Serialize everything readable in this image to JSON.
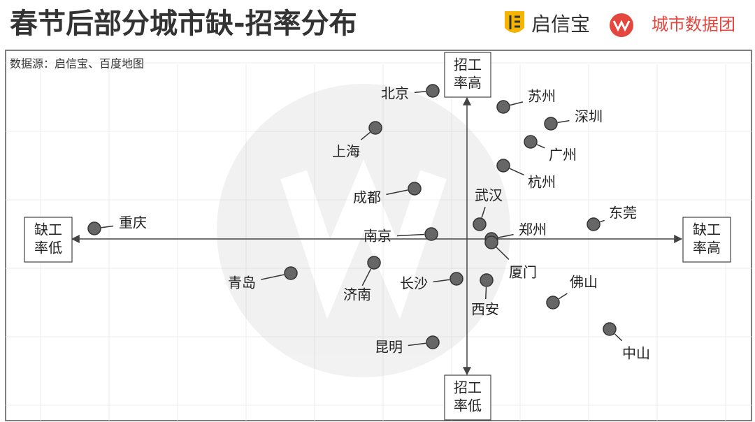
{
  "chart_data": {
    "type": "scatter",
    "title": "春节后部分城市缺-招率分布",
    "brands": [
      "启信宝",
      "城市数据团"
    ],
    "source": "数据源：启信宝、百度地图",
    "x_axis_labels": {
      "low": [
        "缺工",
        "率低"
      ],
      "high": [
        "缺工",
        "率高"
      ]
    },
    "y_axis_labels": {
      "high": [
        "招工",
        "率高"
      ],
      "low": [
        "招工",
        "率低"
      ]
    },
    "color": "#666666",
    "xlim": [
      -660,
      407
    ],
    "ylim": [
      -260,
      270
    ],
    "labels": [
      "北京",
      "苏州",
      "深圳",
      "上海",
      "广州",
      "杭州",
      "成都",
      "武汉",
      "东莞",
      "重庆",
      "南京",
      "郑州",
      "厦门",
      "济南",
      "青岛",
      "长沙",
      "西安",
      "佛山",
      "中山",
      "昆明"
    ],
    "x": [
      -49,
      52,
      120,
      -131,
      91,
      52,
      -75,
      18,
      181,
      -533,
      -51,
      35,
      35,
      -133,
      -252,
      -15,
      28,
      123,
      204,
      -49
    ],
    "values": [
      212,
      189,
      165,
      159,
      139,
      105,
      72,
      21,
      21,
      15,
      7,
      0,
      -5,
      -34,
      -49,
      -57,
      -59,
      -91,
      -129,
      -148
    ]
  }
}
